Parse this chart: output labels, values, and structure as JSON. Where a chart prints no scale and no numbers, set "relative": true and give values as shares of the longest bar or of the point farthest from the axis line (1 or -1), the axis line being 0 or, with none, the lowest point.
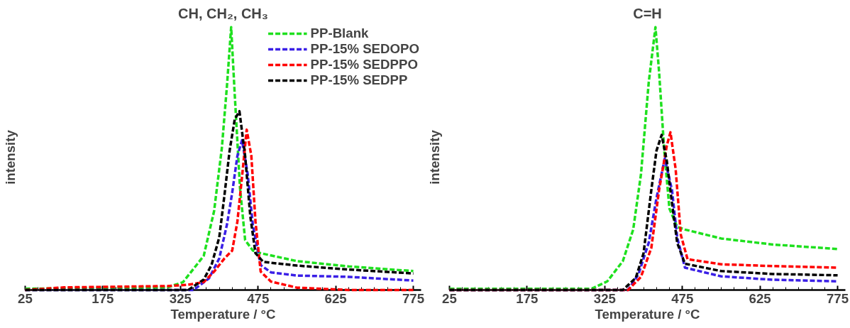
{
  "chart_data": [
    {
      "type": "line",
      "title": "CH, CH₂, CH₃",
      "xlabel": "Temperature / °C",
      "ylabel": "intensity",
      "relative": true,
      "xlim": [
        25,
        790
      ],
      "xticks": [
        25,
        175,
        325,
        475,
        625,
        775
      ],
      "tick_labels": "x",
      "legend": "top right",
      "line_style": "dashed",
      "series": [
        {
          "name": "PP-Blank",
          "color": "#1ee01e",
          "x": [
            25,
            300,
            330,
            370,
            390,
            405,
            415,
            423,
            430,
            440,
            450,
            465,
            480,
            550,
            650,
            775
          ],
          "values": [
            0.005,
            0.01,
            0.03,
            0.13,
            0.3,
            0.54,
            0.78,
            1.0,
            0.74,
            0.39,
            0.19,
            0.15,
            0.14,
            0.11,
            0.09,
            0.072
          ]
        },
        {
          "name": "PP-15% SEDOPO",
          "color": "#3a1fe6",
          "x": [
            25,
            300,
            350,
            380,
            400,
            415,
            425,
            435,
            444,
            455,
            465,
            480,
            500,
            550,
            650,
            775
          ],
          "values": [
            0,
            0,
            0,
            0.044,
            0.12,
            0.25,
            0.37,
            0.51,
            0.57,
            0.44,
            0.245,
            0.095,
            0.067,
            0.055,
            0.05,
            0.036
          ]
        },
        {
          "name": "PP-15% SEDPPO",
          "color": "#ff0000",
          "x": [
            25,
            100,
            300,
            340,
            370,
            390,
            410,
            425,
            435,
            445,
            453,
            462,
            470,
            480,
            500,
            550,
            650,
            775
          ],
          "values": [
            0,
            0.01,
            0.015,
            0.02,
            0.03,
            0.07,
            0.12,
            0.15,
            0.26,
            0.45,
            0.61,
            0.51,
            0.26,
            0.07,
            0.032,
            0.009,
            0,
            0
          ]
        },
        {
          "name": "PP-15% SEDPP",
          "color": "#000000",
          "x": [
            25,
            70,
            300,
            325,
            340,
            370,
            385,
            400,
            410,
            420,
            430,
            439,
            450,
            460,
            470,
            485,
            550,
            650,
            775
          ],
          "values": [
            0,
            0,
            0,
            0,
            0,
            0.04,
            0.095,
            0.2,
            0.36,
            0.53,
            0.65,
            0.68,
            0.51,
            0.28,
            0.14,
            0.107,
            0.093,
            0.078,
            0.063
          ]
        }
      ]
    },
    {
      "type": "line",
      "title": "C=H",
      "xlabel": "Temperature / °C",
      "ylabel": "intensity",
      "relative": true,
      "xlim": [
        25,
        790
      ],
      "xticks": [
        25,
        175,
        325,
        475,
        625,
        775
      ],
      "tick_labels": "x",
      "line_style": "dashed",
      "series": [
        {
          "color": "#1ee01e",
          "x": [
            25,
            300,
            330,
            360,
            380,
            395,
            410,
            423,
            430,
            440,
            450,
            465,
            480,
            550,
            650,
            775
          ],
          "values": [
            0.005,
            0.005,
            0.033,
            0.11,
            0.23,
            0.44,
            0.79,
            1.0,
            0.83,
            0.53,
            0.31,
            0.24,
            0.23,
            0.196,
            0.173,
            0.156
          ]
        },
        {
          "color": "#3a1fe6",
          "x": [
            25,
            300,
            370,
            390,
            410,
            425,
            441,
            455,
            465,
            480,
            550,
            650,
            775
          ],
          "values": [
            0,
            0,
            0,
            0.059,
            0.18,
            0.35,
            0.5,
            0.38,
            0.2,
            0.085,
            0.052,
            0.039,
            0.033
          ]
        },
        {
          "color": "#ff0000",
          "x": [
            25,
            300,
            370,
            395,
            415,
            430,
            445,
            452,
            462,
            472,
            485,
            550,
            650,
            775
          ],
          "values": [
            0,
            0,
            0,
            0.05,
            0.16,
            0.38,
            0.55,
            0.6,
            0.46,
            0.21,
            0.117,
            0.098,
            0.091,
            0.085
          ]
        },
        {
          "color": "#000000",
          "x": [
            25,
            75,
            300,
            360,
            385,
            400,
            415,
            425,
            435,
            445,
            455,
            465,
            480,
            550,
            650,
            775
          ],
          "values": [
            0,
            0,
            0,
            0,
            0.046,
            0.14,
            0.38,
            0.53,
            0.59,
            0.49,
            0.33,
            0.18,
            0.1,
            0.072,
            0.061,
            0.056
          ]
        }
      ]
    }
  ]
}
